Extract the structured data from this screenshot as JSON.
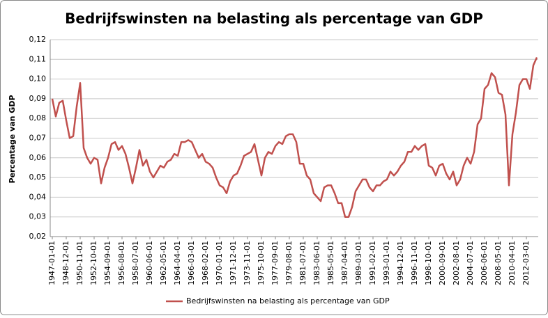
{
  "chart_data": {
    "type": "line",
    "title": "Bedrijfswinsten na belasting als percentage van GDP",
    "y_label": "Percentage van GDP",
    "categories": [
      "1947-01-01",
      null,
      null,
      null,
      "1948-12-01",
      null,
      null,
      null,
      "1950-11-01",
      null,
      null,
      null,
      "1952-10-01",
      null,
      null,
      null,
      "1954-09-01",
      null,
      null,
      null,
      "1956-08-01",
      null,
      null,
      null,
      "1958-07-01",
      null,
      null,
      null,
      "1960-06-01",
      null,
      null,
      null,
      "1962-05-01",
      null,
      null,
      null,
      "1964-04-01",
      null,
      null,
      null,
      "1966-03-01",
      null,
      null,
      null,
      "1968-02-01",
      null,
      null,
      null,
      "1970-01-01",
      null,
      null,
      null,
      "1971-12-01",
      null,
      null,
      null,
      "1973-11-01",
      null,
      null,
      null,
      "1975-10-01",
      null,
      null,
      null,
      "1977-09-01",
      null,
      null,
      null,
      "1979-08-01",
      null,
      null,
      null,
      "1981-07-01",
      null,
      null,
      null,
      "1983-06-01",
      null,
      null,
      null,
      "1985-05-01",
      null,
      null,
      null,
      "1987-04-01",
      null,
      null,
      null,
      "1989-03-01",
      null,
      null,
      null,
      "1991-02-01",
      null,
      null,
      null,
      "1993-01-01",
      null,
      null,
      null,
      "1994-12-01",
      null,
      null,
      null,
      "1996-11-01",
      null,
      null,
      null,
      "1998-10-01",
      null,
      null,
      null,
      "2000-09-01",
      null,
      null,
      null,
      "2002-08-01",
      null,
      null,
      null,
      "2004-07-01",
      null,
      null,
      null,
      "2006-06-01",
      null,
      null,
      null,
      "2008-05-01",
      null,
      null,
      null,
      "2010-04-01",
      null,
      null,
      null,
      "2012-03-01",
      null,
      null,
      null
    ],
    "series": [
      {
        "name": "Bedrijfswinsten na belasting als percentage van GDP",
        "color": "#c0504d",
        "values": [
          0.09,
          0.081,
          0.088,
          0.089,
          0.079,
          0.07,
          0.071,
          0.086,
          0.098,
          0.065,
          0.06,
          0.057,
          0.06,
          0.059,
          0.047,
          0.055,
          0.06,
          0.067,
          0.068,
          0.064,
          0.066,
          0.062,
          0.055,
          0.047,
          0.055,
          0.064,
          0.056,
          0.059,
          0.053,
          0.05,
          0.053,
          0.056,
          0.055,
          0.058,
          0.059,
          0.062,
          0.061,
          0.068,
          0.068,
          0.069,
          0.068,
          0.064,
          0.06,
          0.062,
          0.058,
          0.057,
          0.055,
          0.05,
          0.046,
          0.045,
          0.042,
          0.048,
          0.051,
          0.052,
          0.056,
          0.061,
          0.062,
          0.063,
          0.067,
          0.059,
          0.051,
          0.06,
          0.063,
          0.062,
          0.066,
          0.068,
          0.067,
          0.071,
          0.072,
          0.072,
          0.068,
          0.057,
          0.057,
          0.051,
          0.049,
          0.042,
          0.04,
          0.038,
          0.045,
          0.046,
          0.046,
          0.042,
          0.037,
          0.037,
          0.03,
          0.03,
          0.035,
          0.043,
          0.046,
          0.049,
          0.049,
          0.045,
          0.043,
          0.046,
          0.046,
          0.048,
          0.049,
          0.053,
          0.051,
          0.053,
          0.056,
          0.058,
          0.063,
          0.063,
          0.066,
          0.064,
          0.066,
          0.067,
          0.056,
          0.055,
          0.051,
          0.056,
          0.057,
          0.052,
          0.049,
          0.053,
          0.046,
          0.049,
          0.056,
          0.06,
          0.057,
          0.063,
          0.077,
          0.08,
          0.095,
          0.097,
          0.103,
          0.101,
          0.093,
          0.092,
          0.082,
          0.046,
          0.072,
          0.083,
          0.097,
          0.1,
          0.1,
          0.095,
          0.107,
          0.111
        ]
      }
    ],
    "ylim": [
      0.02,
      0.12
    ],
    "yticks": [
      {
        "value": 0.02,
        "label": "0,02"
      },
      {
        "value": 0.03,
        "label": "0,03"
      },
      {
        "value": 0.04,
        "label": "0,04"
      },
      {
        "value": 0.05,
        "label": "0,05"
      },
      {
        "value": 0.06,
        "label": "0,06"
      },
      {
        "value": 0.07,
        "label": "0,07"
      },
      {
        "value": 0.08,
        "label": "0,08"
      },
      {
        "value": 0.09,
        "label": "0,09"
      },
      {
        "value": 0.1,
        "label": "0,10"
      },
      {
        "value": 0.11,
        "label": "0,11"
      },
      {
        "value": 0.12,
        "label": "0,12"
      }
    ],
    "grid": true,
    "legend": "bottom"
  }
}
